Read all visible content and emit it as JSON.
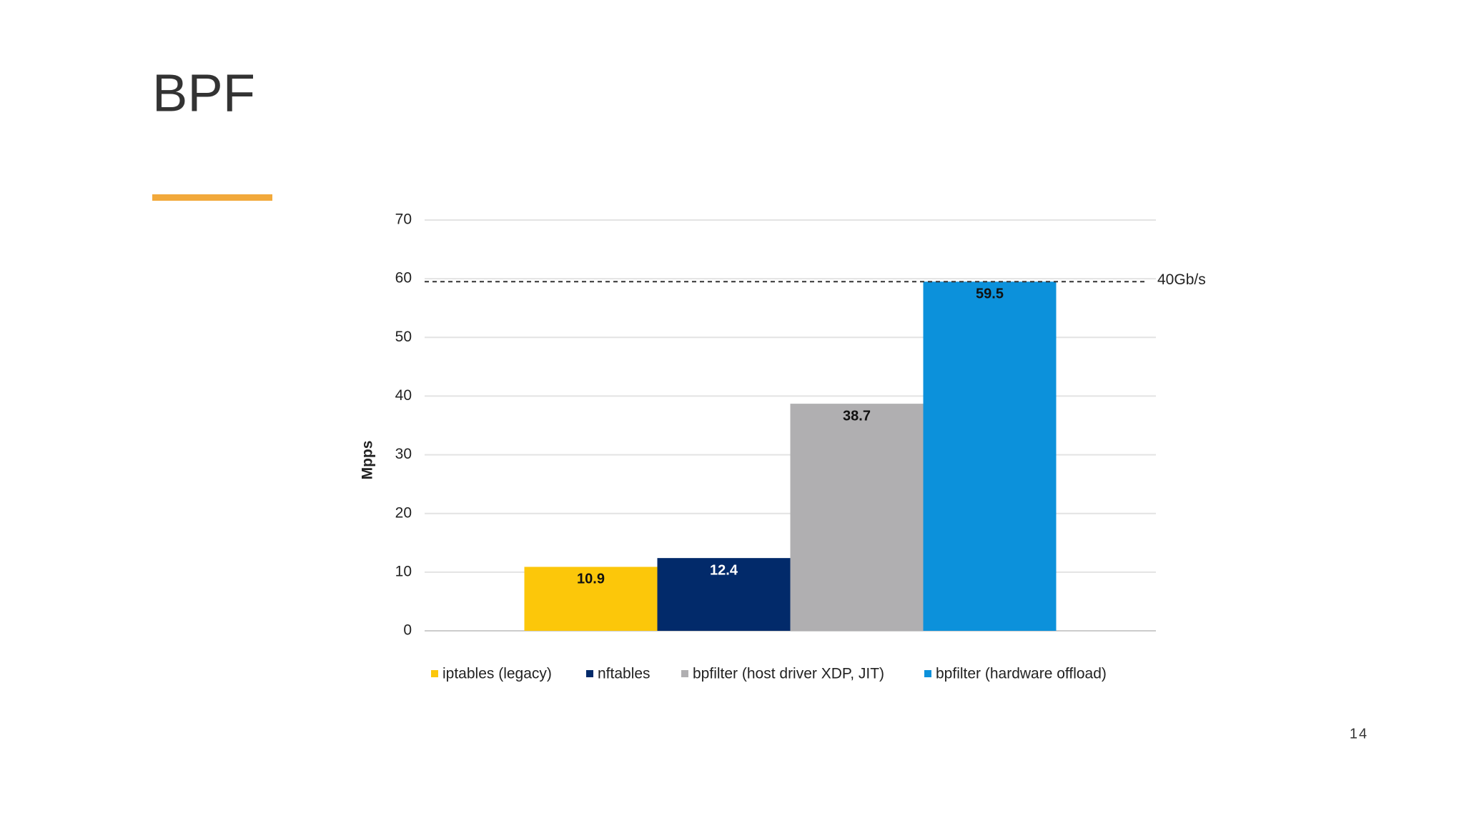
{
  "page": {
    "title": "BPF",
    "page_number": "14"
  },
  "chart_data": {
    "type": "bar",
    "y_label": "Mpps",
    "series": [
      {
        "name": "iptables (legacy)",
        "color": "#fcc70a",
        "values": [
          10.9
        ]
      },
      {
        "name": "nftables",
        "color": "#022a6a",
        "values": [
          12.4
        ]
      },
      {
        "name": "bpfilter (host driver XDP, JIT)",
        "color": "#b0afb1",
        "values": [
          38.7
        ]
      },
      {
        "name": "bpfilter (hardware offload)",
        "color": "#0c91db",
        "values": [
          59.5
        ]
      }
    ],
    "ylim": [
      0,
      70
    ],
    "yticks": [
      0,
      10,
      20,
      30,
      40,
      50,
      60,
      70
    ],
    "grid": true,
    "reference_line": {
      "value": 59.5,
      "label": "40Gb/s"
    },
    "legend": "bottom"
  }
}
